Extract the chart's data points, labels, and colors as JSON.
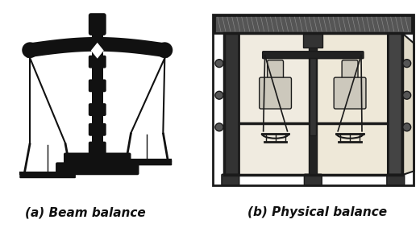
{
  "bg_color": "#ffffff",
  "label_a": "(a) Beam balance",
  "label_b": "(b) Physical balance",
  "label_fontsize": 11,
  "label_fontweight": "bold",
  "fig_width": 5.21,
  "fig_height": 2.83,
  "dpi": 100,
  "col": "#111111"
}
